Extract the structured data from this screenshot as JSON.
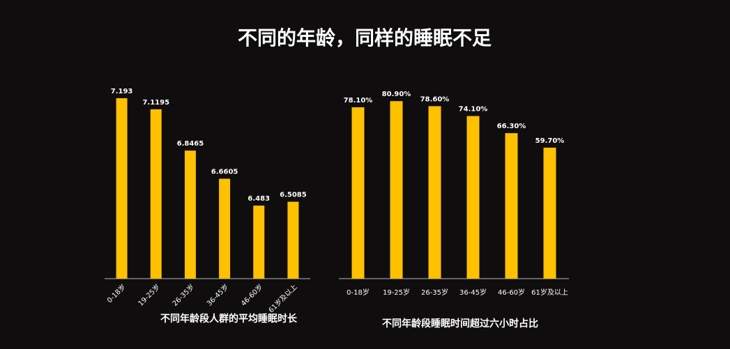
{
  "title": "不同的年龄，同样的睡眠不足",
  "chart_data": [
    {
      "type": "bar",
      "title": "不同年龄段人群的平均睡眠时长",
      "categories": [
        "0-18岁",
        "19-25岁",
        "26-35岁",
        "36-45岁",
        "46-60岁",
        "61岁及以上"
      ],
      "values": [
        7.193,
        7.1195,
        6.8465,
        6.6605,
        6.483,
        6.5085
      ],
      "color": "#ffc000",
      "ylim": [
        6,
        7.4
      ],
      "label_rotation": -45
    },
    {
      "type": "bar",
      "title": "不同年龄段睡眠时间超过六小时占比",
      "categories": [
        "0-18岁",
        "19-25岁",
        "26-35岁",
        "36-45岁",
        "46-60岁",
        "61岁及以上"
      ],
      "values": [
        78.1,
        80.9,
        78.6,
        74.1,
        66.3,
        59.7
      ],
      "value_labels": [
        "78.10%",
        "80.90%",
        "78.60%",
        "74.10%",
        "66.30%",
        "59.70%"
      ],
      "color": "#ffc000",
      "ylim": [
        0,
        100
      ],
      "label_rotation": 0
    }
  ]
}
